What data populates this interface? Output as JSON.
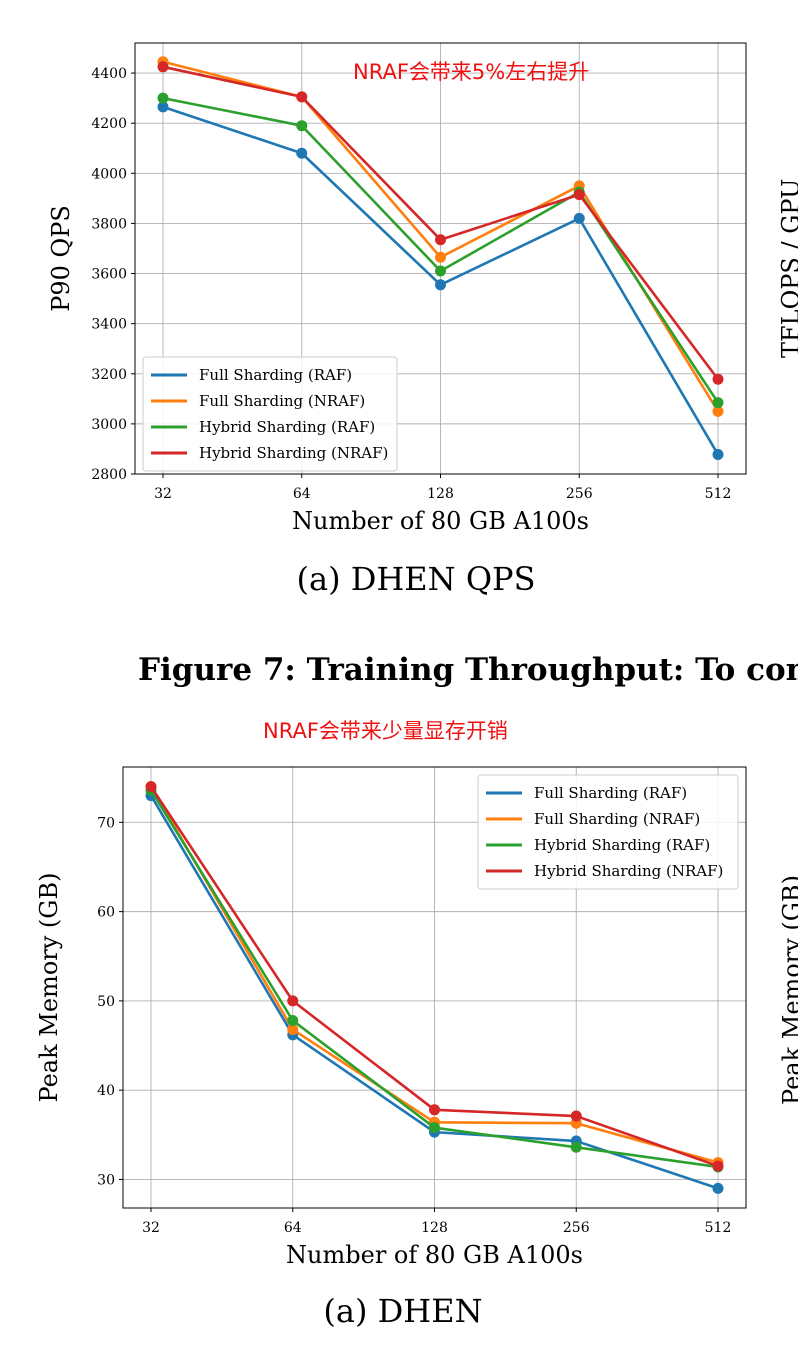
{
  "charts": [
    {
      "chart_data": {
        "type": "line",
        "x": [
          "32",
          "64",
          "128",
          "256",
          "512"
        ],
        "series": [
          {
            "name": "Full Sharding (RAF)",
            "color": "#1f77b4",
            "values": [
              4265,
              4080,
              3555,
              3820,
              2878
            ]
          },
          {
            "name": "Full Sharding (NRAF)",
            "color": "#ff7f0e",
            "values": [
              4445,
              4305,
              3665,
              3950,
              3050
            ]
          },
          {
            "name": "Hybrid Sharding (RAF)",
            "color": "#2ca02c",
            "values": [
              4300,
              4190,
              3610,
              3925,
              3085
            ]
          },
          {
            "name": "Hybrid Sharding (NRAF)",
            "color": "#d62728",
            "values": [
              4425,
              4305,
              3735,
              3915,
              3178
            ]
          }
        ],
        "xlabel": "Number of 80 GB A100s",
        "ylabel": "P90 QPS",
        "ylim": [
          2800,
          4520
        ],
        "yticks": [
          "2800",
          "3000",
          "3200",
          "3400",
          "3600",
          "3800",
          "4000",
          "4200",
          "4400"
        ],
        "grid": true,
        "legend": "lower-left",
        "annotation": "NRAF会带来5%左右提升",
        "annotation_color": "#ee1111"
      },
      "caption": "(a) DHEN QPS"
    },
    {
      "chart_data": {
        "type": "line",
        "x": [
          "32",
          "64",
          "128",
          "256",
          "512"
        ],
        "series": [
          {
            "name": "Full Sharding (RAF)",
            "color": "#1f77b4",
            "values": [
              73.0,
              46.2,
              35.3,
              34.3,
              29.0
            ]
          },
          {
            "name": "Full Sharding (NRAF)",
            "color": "#ff7f0e",
            "values": [
              74.0,
              46.8,
              36.4,
              36.3,
              31.9
            ]
          },
          {
            "name": "Hybrid Sharding (RAF)",
            "color": "#2ca02c",
            "values": [
              73.6,
              47.8,
              35.8,
              33.6,
              31.4
            ]
          },
          {
            "name": "Hybrid Sharding (NRAF)",
            "color": "#d62728",
            "values": [
              74.0,
              50.0,
              37.8,
              37.1,
              31.5
            ]
          }
        ],
        "xlabel": "Number of 80 GB A100s",
        "ylabel": "Peak Memory (GB)",
        "ylim": [
          26.8,
          76.2
        ],
        "yticks": [
          "30",
          "40",
          "50",
          "60",
          "70"
        ],
        "grid": true,
        "legend": "upper-right"
      },
      "caption": "(a) DHEN"
    }
  ],
  "figure_caption": "Figure 7: Training Throughput: To con",
  "annotation2": "NRAF会带来少量显存开销",
  "side_label_1": "TFLOPS / GPU",
  "side_label_2": "Peak Memory (GB)"
}
